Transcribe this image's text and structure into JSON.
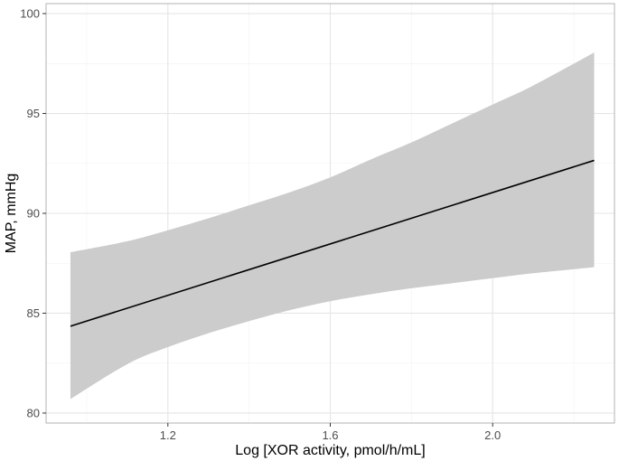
{
  "chart_data": {
    "type": "line",
    "title": "",
    "xlabel": "Log [XOR activity, pmol/h/mL]",
    "ylabel": "MAP, mmHg",
    "xlim": [
      0.9,
      2.3
    ],
    "ylim": [
      79.5,
      100.5
    ],
    "x_ticks": [
      1.2,
      1.6,
      2.0
    ],
    "x_tick_labels": [
      "1.2",
      "1.6",
      "2.0"
    ],
    "y_ticks": [
      80,
      85,
      90,
      95,
      100
    ],
    "y_tick_labels": [
      "80",
      "85",
      "90",
      "95",
      "100"
    ],
    "grid": true,
    "legend": "none",
    "series": [
      {
        "x": [
          0.96,
          2.25
        ],
        "y": [
          84.35,
          92.65
        ]
      }
    ],
    "confidence_band": {
      "x": [
        0.96,
        1.1,
        1.2,
        1.3,
        1.4,
        1.5,
        1.6,
        1.7,
        1.8,
        1.9,
        2.0,
        2.1,
        2.25
      ],
      "lower": [
        80.7,
        82.45,
        83.3,
        84.0,
        84.6,
        85.15,
        85.6,
        85.95,
        86.25,
        86.5,
        86.75,
        87.0,
        87.3
      ],
      "upper": [
        88.05,
        88.6,
        89.15,
        89.75,
        90.4,
        91.05,
        91.8,
        92.7,
        93.55,
        94.5,
        95.45,
        96.4,
        98.05
      ]
    },
    "colors": {
      "line": "#000000",
      "band": "#cccccc",
      "grid_major": "#e5e5e5",
      "grid_minor": "#f2f2f2",
      "panel_border": "#b3b3b3"
    }
  }
}
